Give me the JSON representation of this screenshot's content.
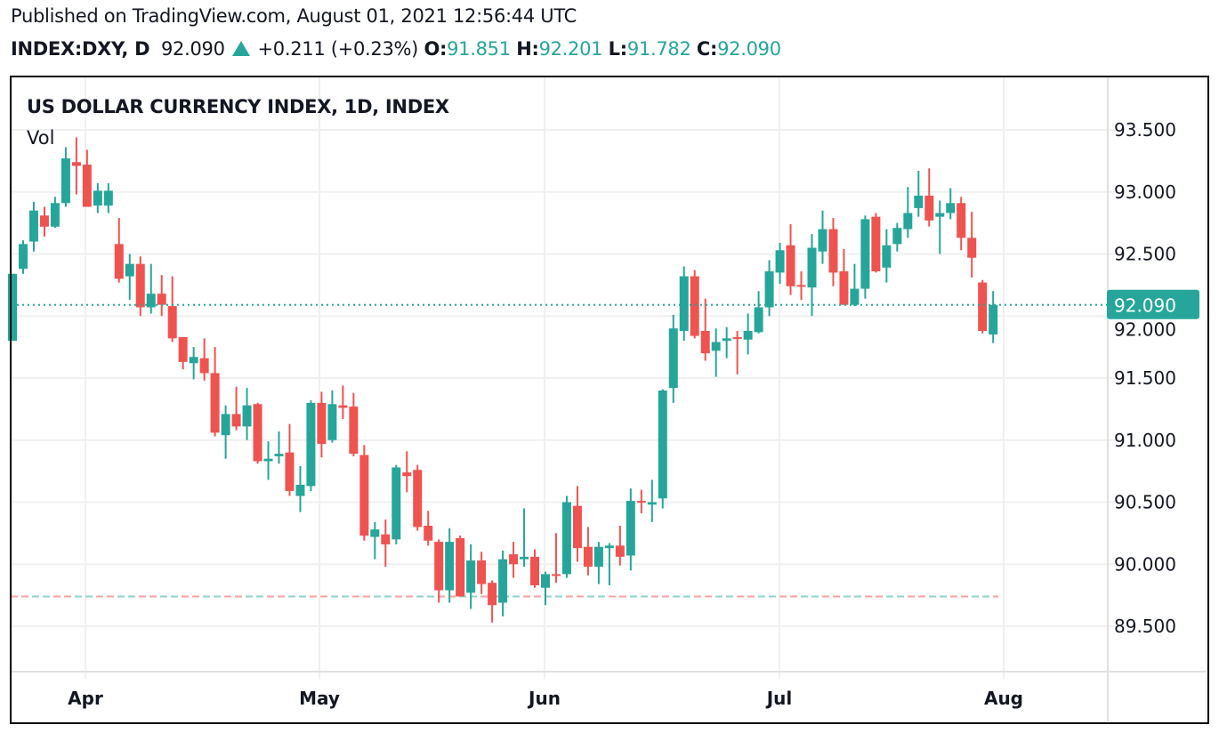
{
  "header": {
    "published": "Published on TradingView.com, August 01, 2021 12:56:44 UTC",
    "symbol": "INDEX:DXY, D",
    "last": "92.090",
    "change": "+0.211 (+0.23%)",
    "o_label": "O:",
    "o_value": "91.851",
    "h_label": "H:",
    "h_value": "92.201",
    "l_label": "L:",
    "l_value": "91.782",
    "c_label": "C:",
    "c_value": "92.090",
    "direction_icon": "triangle-up-icon"
  },
  "colors": {
    "up": "#26a69a",
    "down": "#ef5350",
    "text": "#131722",
    "grid": "#f0f0f0"
  },
  "chart_data": {
    "type": "candlestick",
    "title": "US DOLLAR CURRENCY INDEX, 1D, INDEX",
    "indicator_label": "Vol",
    "ylim": [
      89.25,
      93.85
    ],
    "yticks": [
      "93.500",
      "93.000",
      "92.500",
      "92.000",
      "91.500",
      "91.000",
      "90.500",
      "90.000",
      "89.500"
    ],
    "xticks": [
      "Apr",
      "May",
      "Jun",
      "Jul",
      "Aug"
    ],
    "grid": true,
    "last_price_label": "92.090",
    "last_price": 92.09,
    "dashed_level": 89.74,
    "ohlc": [
      [
        91.8,
        92.34,
        91.8,
        92.34
      ],
      [
        92.38,
        92.61,
        92.34,
        92.58
      ],
      [
        92.6,
        92.92,
        92.52,
        92.85
      ],
      [
        92.81,
        92.88,
        92.64,
        92.72
      ],
      [
        92.72,
        92.96,
        92.71,
        92.91
      ],
      [
        92.91,
        93.36,
        92.88,
        93.27
      ],
      [
        93.24,
        93.44,
        92.98,
        93.21
      ],
      [
        93.22,
        93.34,
        92.88,
        92.88
      ],
      [
        92.89,
        93.07,
        92.83,
        93.01
      ],
      [
        92.89,
        93.07,
        92.83,
        93.01
      ],
      [
        92.58,
        92.79,
        92.27,
        92.3
      ],
      [
        92.32,
        92.5,
        92.13,
        92.42
      ],
      [
        92.42,
        92.48,
        92.0,
        92.07
      ],
      [
        92.07,
        92.42,
        92.02,
        92.18
      ],
      [
        92.18,
        92.33,
        92.0,
        92.09
      ],
      [
        92.08,
        92.32,
        91.79,
        91.82
      ],
      [
        91.83,
        91.83,
        91.57,
        91.63
      ],
      [
        91.62,
        91.75,
        91.49,
        91.67
      ],
      [
        91.66,
        91.82,
        91.48,
        91.54
      ],
      [
        91.54,
        91.75,
        91.03,
        91.06
      ],
      [
        91.04,
        91.28,
        90.85,
        91.21
      ],
      [
        91.21,
        91.43,
        91.08,
        91.11
      ],
      [
        91.11,
        91.42,
        91.0,
        91.28
      ],
      [
        91.29,
        91.3,
        90.81,
        90.83
      ],
      [
        90.83,
        90.99,
        90.68,
        90.85
      ],
      [
        90.87,
        91.07,
        90.81,
        90.89
      ],
      [
        90.9,
        91.13,
        90.55,
        90.59
      ],
      [
        90.55,
        90.79,
        90.42,
        90.64
      ],
      [
        90.63,
        91.32,
        90.59,
        91.3
      ],
      [
        91.3,
        91.39,
        90.86,
        90.97
      ],
      [
        91.0,
        91.4,
        90.98,
        91.29
      ],
      [
        91.28,
        91.44,
        91.17,
        91.26
      ],
      [
        91.27,
        91.38,
        90.87,
        90.89
      ],
      [
        90.88,
        90.96,
        90.19,
        90.23
      ],
      [
        90.22,
        90.34,
        90.04,
        90.28
      ],
      [
        90.24,
        90.36,
        89.98,
        90.16
      ],
      [
        90.2,
        90.8,
        90.16,
        90.78
      ],
      [
        90.74,
        90.91,
        90.58,
        90.71
      ],
      [
        90.76,
        90.8,
        90.27,
        90.3
      ],
      [
        90.31,
        90.43,
        90.15,
        90.19
      ],
      [
        90.18,
        90.2,
        89.69,
        89.79
      ],
      [
        89.79,
        90.29,
        89.69,
        90.18
      ],
      [
        90.21,
        90.23,
        89.74,
        89.74
      ],
      [
        89.77,
        90.16,
        89.64,
        90.03
      ],
      [
        90.03,
        90.1,
        89.76,
        89.84
      ],
      [
        89.85,
        89.87,
        89.53,
        89.67
      ],
      [
        89.69,
        90.11,
        89.58,
        90.04
      ],
      [
        90.08,
        90.18,
        89.89,
        90.0
      ],
      [
        90.04,
        90.45,
        89.98,
        90.06
      ],
      [
        90.06,
        90.12,
        89.81,
        89.83
      ],
      [
        89.81,
        89.94,
        89.67,
        89.92
      ],
      [
        89.92,
        90.25,
        89.85,
        89.91
      ],
      [
        89.92,
        90.55,
        89.89,
        90.5
      ],
      [
        90.47,
        90.63,
        90.02,
        90.13
      ],
      [
        90.14,
        90.3,
        89.91,
        89.98
      ],
      [
        89.98,
        90.18,
        89.84,
        90.14
      ],
      [
        90.13,
        90.17,
        89.83,
        90.15
      ],
      [
        90.15,
        90.31,
        89.99,
        90.06
      ],
      [
        90.07,
        90.61,
        89.95,
        90.51
      ],
      [
        90.51,
        90.6,
        90.41,
        90.5
      ],
      [
        90.48,
        90.68,
        90.34,
        90.5
      ],
      [
        90.53,
        91.41,
        90.45,
        91.4
      ],
      [
        91.42,
        92.01,
        91.3,
        91.9
      ],
      [
        91.88,
        92.4,
        91.8,
        92.32
      ],
      [
        92.32,
        92.37,
        91.82,
        91.84
      ],
      [
        91.88,
        92.14,
        91.64,
        91.7
      ],
      [
        91.72,
        91.9,
        91.51,
        91.79
      ],
      [
        91.8,
        91.91,
        91.66,
        91.82
      ],
      [
        91.83,
        91.88,
        91.53,
        91.82
      ],
      [
        91.81,
        92.02,
        91.69,
        91.88
      ],
      [
        91.87,
        92.2,
        91.86,
        92.07
      ],
      [
        92.07,
        92.45,
        92.0,
        92.36
      ],
      [
        92.35,
        92.59,
        92.26,
        92.53
      ],
      [
        92.57,
        92.74,
        92.17,
        92.24
      ],
      [
        92.25,
        92.36,
        92.13,
        92.24
      ],
      [
        92.23,
        92.66,
        92.0,
        92.55
      ],
      [
        92.52,
        92.85,
        92.42,
        92.7
      ],
      [
        92.7,
        92.79,
        92.24,
        92.35
      ],
      [
        92.36,
        92.54,
        92.09,
        92.09
      ],
      [
        92.09,
        92.42,
        92.08,
        92.22
      ],
      [
        92.22,
        92.81,
        92.14,
        92.78
      ],
      [
        92.8,
        92.83,
        92.35,
        92.36
      ],
      [
        92.39,
        92.7,
        92.27,
        92.57
      ],
      [
        92.58,
        92.75,
        92.52,
        92.71
      ],
      [
        92.7,
        93.04,
        92.63,
        92.83
      ],
      [
        92.87,
        93.17,
        92.8,
        92.97
      ],
      [
        92.97,
        93.19,
        92.72,
        92.77
      ],
      [
        92.8,
        92.93,
        92.5,
        92.83
      ],
      [
        92.83,
        93.03,
        92.78,
        92.91
      ],
      [
        92.91,
        92.96,
        92.53,
        92.63
      ],
      [
        92.63,
        92.84,
        92.31,
        92.47
      ],
      [
        92.27,
        92.29,
        91.86,
        91.88
      ],
      [
        91.851,
        92.201,
        91.782,
        92.09
      ]
    ]
  }
}
